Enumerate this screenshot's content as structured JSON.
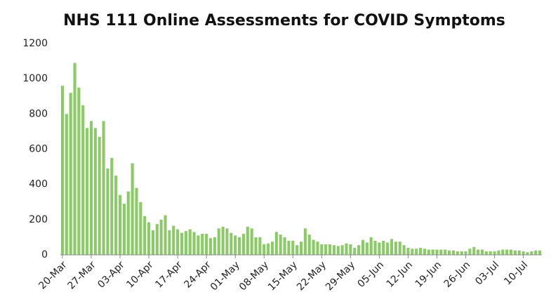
{
  "chart_data": {
    "type": "bar",
    "title": "NHS 111 Online Assessments for COVID Symptoms",
    "categories": [
      "20-Mar",
      null,
      null,
      null,
      null,
      null,
      null,
      "27-Mar",
      null,
      null,
      null,
      null,
      null,
      null,
      "03-Apr",
      null,
      null,
      null,
      null,
      null,
      null,
      "10-Apr",
      null,
      null,
      null,
      null,
      null,
      null,
      "17-Apr",
      null,
      null,
      null,
      null,
      null,
      null,
      "24-Apr",
      null,
      null,
      null,
      null,
      null,
      null,
      "01-May",
      null,
      null,
      null,
      null,
      null,
      null,
      "08-May",
      null,
      null,
      null,
      null,
      null,
      null,
      "15-May",
      null,
      null,
      null,
      null,
      null,
      null,
      "22-May",
      null,
      null,
      null,
      null,
      null,
      null,
      "29-May",
      null,
      null,
      null,
      null,
      null,
      null,
      "05-Jun",
      null,
      null,
      null,
      null,
      null,
      null,
      "12-Jun",
      null,
      null,
      null,
      null,
      null,
      null,
      "19-Jun",
      null,
      null,
      null,
      null,
      null,
      null,
      "26-Jun",
      null,
      null,
      null,
      null,
      null,
      null,
      "03-Jul",
      null,
      null,
      null,
      null,
      null,
      null,
      "10-Jul",
      null,
      null,
      null,
      null
    ],
    "values": [
      960,
      800,
      920,
      1090,
      950,
      850,
      720,
      760,
      720,
      670,
      760,
      490,
      550,
      450,
      340,
      290,
      360,
      520,
      380,
      300,
      220,
      185,
      140,
      175,
      200,
      225,
      140,
      165,
      145,
      125,
      135,
      145,
      130,
      110,
      120,
      120,
      95,
      100,
      150,
      160,
      150,
      125,
      110,
      100,
      120,
      160,
      150,
      100,
      100,
      60,
      65,
      75,
      130,
      115,
      100,
      80,
      80,
      55,
      75,
      150,
      115,
      85,
      75,
      60,
      60,
      60,
      55,
      50,
      55,
      65,
      60,
      40,
      55,
      85,
      70,
      100,
      80,
      70,
      80,
      70,
      90,
      75,
      75,
      55,
      40,
      35,
      35,
      40,
      35,
      30,
      30,
      30,
      30,
      30,
      25,
      25,
      20,
      20,
      20,
      35,
      45,
      30,
      30,
      20,
      20,
      20,
      25,
      30,
      30,
      30,
      25,
      25,
      20,
      15,
      20,
      25,
      25
    ],
    "color": "#8cc968",
    "ylim": [
      0,
      1200
    ],
    "yticks": [
      0,
      200,
      400,
      600,
      800,
      1000,
      1200
    ],
    "grid": false
  }
}
